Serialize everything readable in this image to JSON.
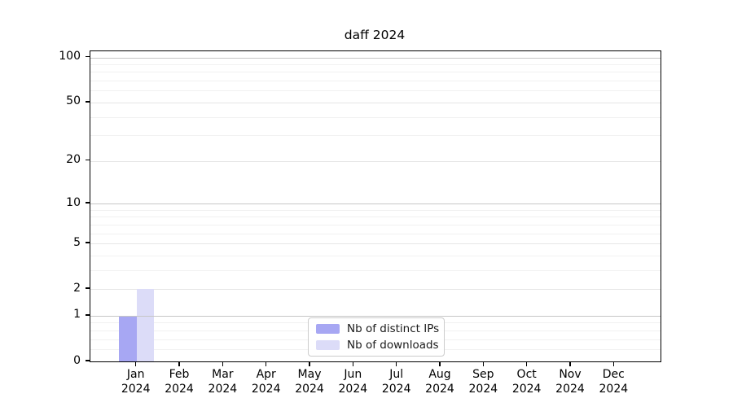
{
  "chart_data": {
    "type": "bar",
    "title": "daff 2024",
    "x_categories": [
      "Jan",
      "Feb",
      "Mar",
      "Apr",
      "May",
      "Jun",
      "Jul",
      "Aug",
      "Sep",
      "Oct",
      "Nov",
      "Dec"
    ],
    "x_sublabel": "2024",
    "series": [
      {
        "name": "Nb of distinct IPs",
        "color": "#a7a7f3",
        "values": [
          1,
          0,
          0,
          0,
          0,
          0,
          0,
          0,
          0,
          0,
          0,
          0
        ]
      },
      {
        "name": "Nb of downloads",
        "color": "#dcdcf8",
        "values": [
          2,
          0,
          0,
          0,
          0,
          0,
          0,
          0,
          0,
          0,
          0,
          0
        ]
      }
    ],
    "y_axis": {
      "scale": "log1p",
      "ticks": [
        0,
        1,
        2,
        5,
        10,
        20,
        50,
        100
      ],
      "minor_ticks": [
        0.2,
        0.4,
        0.6,
        0.8,
        3,
        4,
        6,
        7,
        8,
        9,
        30,
        40,
        60,
        70,
        80,
        90
      ],
      "max": 110
    },
    "grid": "horizontal",
    "legend_position": "bottom-center",
    "legend_entries": [
      "Nb of distinct IPs",
      "Nb of downloads"
    ]
  },
  "style": {
    "background": "#ffffff",
    "grid_minor": "#f1f1f1",
    "grid_major_light": "#e6e6e6",
    "grid_major_dark": "#c6c6c6",
    "axis_color": "#000000",
    "text_color": "#000000"
  }
}
